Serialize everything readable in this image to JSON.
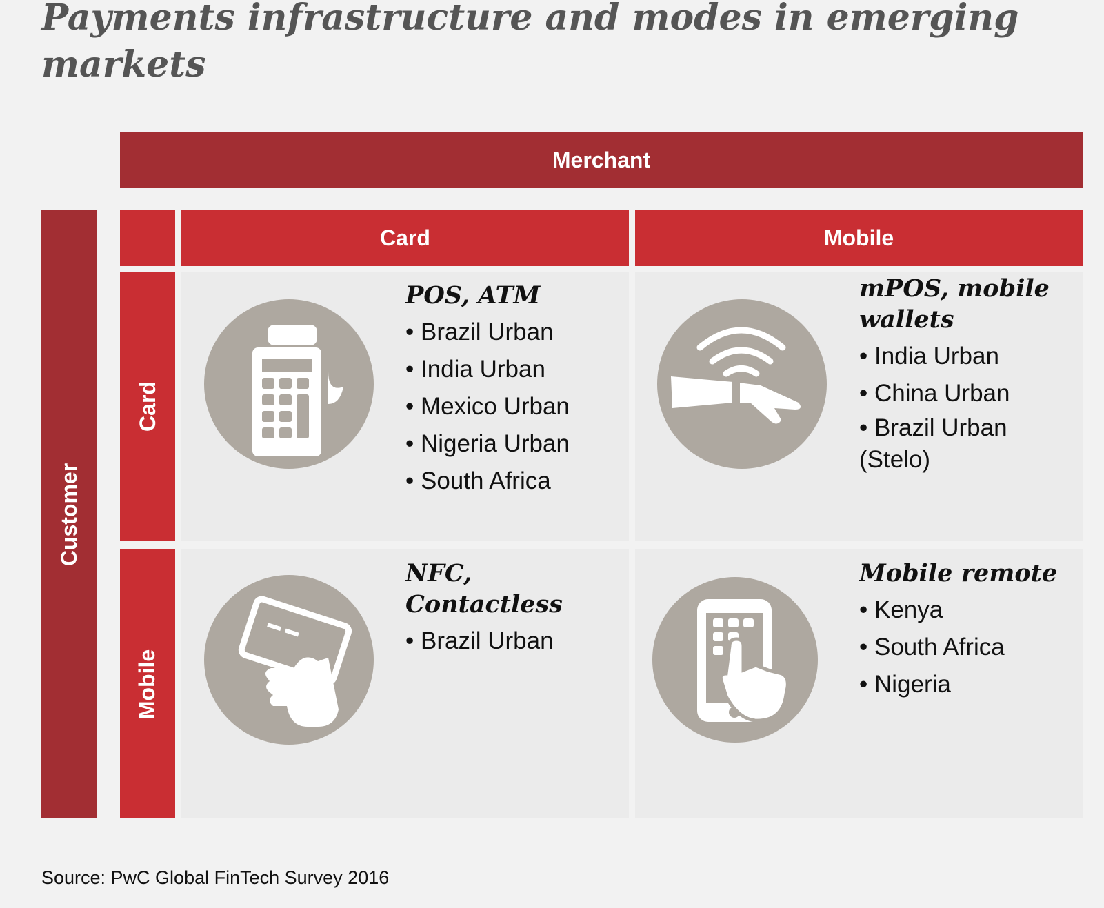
{
  "title": "Payments infrastructure and modes in emerging markets",
  "merchant_label": "Merchant",
  "customer_label": "Customer",
  "columns": [
    "Card",
    "Mobile"
  ],
  "rows": [
    "Card",
    "Mobile"
  ],
  "cells": {
    "card_card": {
      "heading": "POS, ATM",
      "items": [
        "Brazil Urban",
        "India Urban",
        "Mexico Urban",
        "Nigeria Urban",
        "South Africa"
      ]
    },
    "card_mobile": {
      "heading": "mPOS, mobile wallets",
      "items": [
        "India Urban",
        "China Urban",
        "Brazil Urban (Stelo)"
      ]
    },
    "mobile_card": {
      "heading": "NFC, Contactless",
      "items": [
        "Brazil Urban"
      ]
    },
    "mobile_mobile": {
      "heading": "Mobile remote",
      "items": [
        "Kenya",
        "South Africa",
        "Nigeria"
      ]
    }
  },
  "source": "Source: PwC Global FinTech Survey 2016",
  "colors": {
    "dark_red": "#a22e33",
    "red": "#c92e33",
    "icon_gray": "#aea8a0",
    "background": "#f2f2f2"
  }
}
